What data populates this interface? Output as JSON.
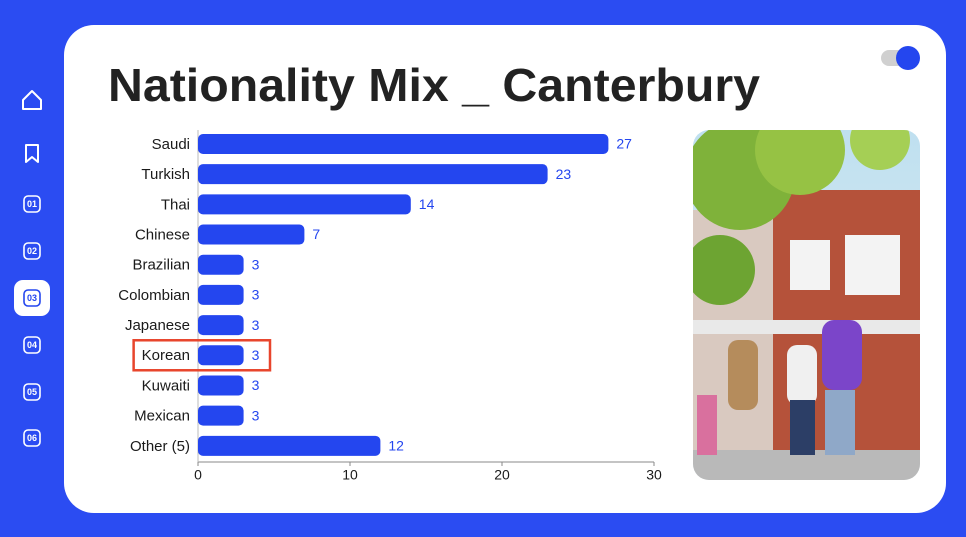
{
  "title": "Nationality Mix _ Canterbury",
  "nav": [
    "01",
    "02",
    "03",
    "04",
    "05",
    "06"
  ],
  "chart_data": {
    "type": "bar",
    "orientation": "horizontal",
    "categories": [
      "Saudi",
      "Turkish",
      "Thai",
      "Chinese",
      "Brazilian",
      "Colombian",
      "Japanese",
      "Korean",
      "Kuwaiti",
      "Mexican",
      "Other (5)"
    ],
    "values": [
      27,
      23,
      14,
      7,
      3,
      3,
      3,
      3,
      3,
      3,
      12
    ],
    "color": "#2446ef",
    "xlim": [
      0,
      30
    ],
    "xticks": [
      0,
      10,
      20,
      30
    ],
    "highlight": "Korean",
    "highlight_color": "#e8452c"
  }
}
